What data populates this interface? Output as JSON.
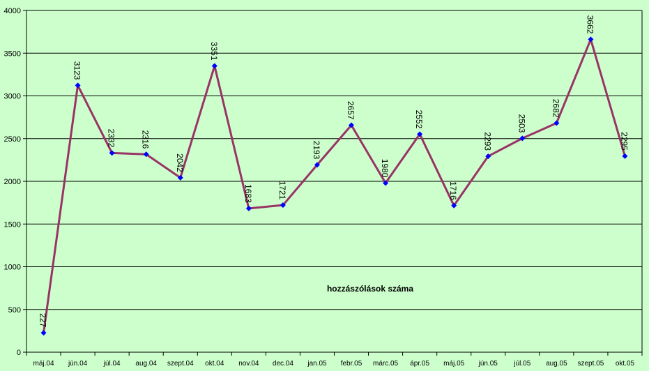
{
  "chart_data": {
    "type": "line",
    "categories": [
      "máj.04",
      "jún.04",
      "júl.04",
      "aug.04",
      "szept.04",
      "okt.04",
      "nov.04",
      "dec.04",
      "jan.05",
      "febr.05",
      "márc.05",
      "ápr.05",
      "máj.05",
      "jún.05",
      "júl.05",
      "aug.05",
      "szept.05",
      "okt.05"
    ],
    "series": [
      {
        "values": [
          227,
          3123,
          2332,
          2316,
          2042,
          3351,
          1683,
          1721,
          2193,
          2657,
          1980,
          2552,
          1716,
          2293,
          2503,
          2682,
          3662,
          2295
        ]
      }
    ],
    "annotation": "hozzászólások száma",
    "ylim": [
      0,
      4000
    ],
    "yticks": [
      0,
      500,
      1000,
      1500,
      2000,
      2500,
      3000,
      3500,
      4000
    ],
    "grid": true,
    "data_labels": true,
    "colors": {
      "background": "#ccffcc",
      "line": "#993366",
      "marker": "#0000ff",
      "grid": "#000000"
    }
  }
}
